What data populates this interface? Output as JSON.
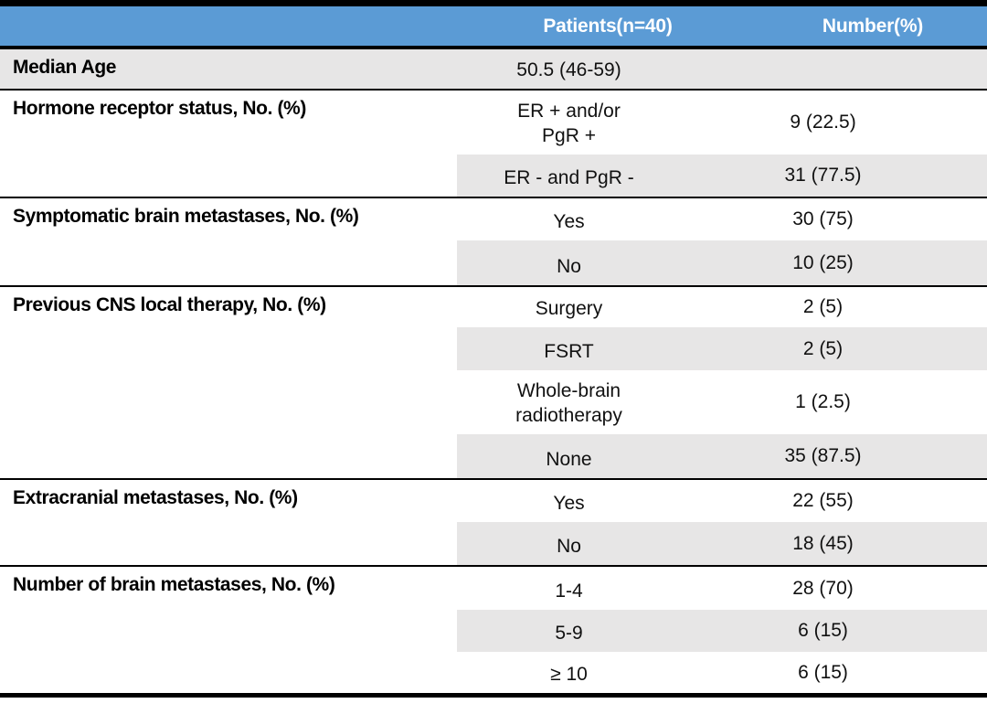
{
  "table": {
    "header": {
      "patients": "Patients(n=40)",
      "number": "Number(%)"
    },
    "colors": {
      "header_bg": "#5b9bd5",
      "header_text": "#ffffff",
      "row_shade": "#e7e6e6",
      "border": "#000000"
    },
    "rows": [
      {
        "label": "Median Age",
        "value": "50.5 (46-59)",
        "number": "",
        "shade": "full",
        "height": 45,
        "divider": true
      },
      {
        "label": "Hormone receptor status, No. (%)",
        "value": "ER + and/or\nPgR +",
        "number": "9 (22.5)",
        "shade": "none",
        "height": 70,
        "divider": false
      },
      {
        "label": "",
        "value": "ER - and PgR -",
        "number": "31 (77.5)",
        "shade": "cols",
        "height": 48,
        "divider": true
      },
      {
        "label": "Symptomatic brain metastases, No. (%)",
        "value": "Yes",
        "number": "30 (75)",
        "shade": "none",
        "height": 46,
        "divider": false
      },
      {
        "label": "",
        "value": "No",
        "number": "10 (25)",
        "shade": "cols",
        "height": 51,
        "divider": true
      },
      {
        "label": "Previous CNS local therapy, No. (%)",
        "value": "Surgery",
        "number": "2 (5)",
        "shade": "none",
        "height": 44,
        "divider": false
      },
      {
        "label": "",
        "value": "FSRT",
        "number": "2 (5)",
        "shade": "cols",
        "height": 47,
        "divider": false
      },
      {
        "label": "",
        "value": "Whole-brain\nradiotherapy",
        "number": "1 (2.5)",
        "shade": "none",
        "height": 70,
        "divider": false
      },
      {
        "label": "",
        "value": "None",
        "number": "35 (87.5)",
        "shade": "cols",
        "height": 50,
        "divider": true
      },
      {
        "label": "Extracranial metastases, No. (%)",
        "value": "Yes",
        "number": "22 (55)",
        "shade": "none",
        "height": 46,
        "divider": false
      },
      {
        "label": "",
        "value": "No",
        "number": "18 (45)",
        "shade": "cols",
        "height": 49,
        "divider": true
      },
      {
        "label": "Number of brain metastases, No. (%)",
        "value": "1-4",
        "number": "28 (70)",
        "shade": "none",
        "height": 47,
        "divider": false
      },
      {
        "label": "",
        "value": "5-9",
        "number": "6 (15)",
        "shade": "cols",
        "height": 46,
        "divider": false
      },
      {
        "label": "",
        "value": "≥ 10",
        "number": "6 (15)",
        "shade": "none",
        "height": 45,
        "divider": false
      }
    ]
  }
}
